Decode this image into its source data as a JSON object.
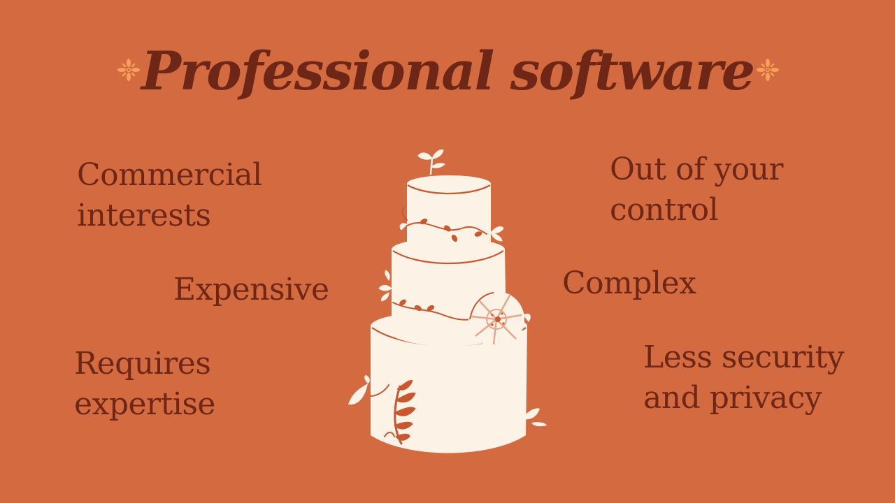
{
  "slide": {
    "title": "Professional software",
    "colors": {
      "background": "#D46B40",
      "text": "#6E2716",
      "cake": "#FCF2E6",
      "accent": "#F5A15A"
    },
    "icons": [
      "asterisk-flower-icon",
      "asterisk-flower-icon",
      "wedding-cake-illustration"
    ],
    "points_left": {
      "commercial": "Commercial\ninterests",
      "expensive": "Expensive",
      "expertise": "Requires\nexpertise"
    },
    "points_right": {
      "control": "Out of your\ncontrol",
      "complex": "Complex",
      "security": "Less security\nand privacy"
    }
  }
}
